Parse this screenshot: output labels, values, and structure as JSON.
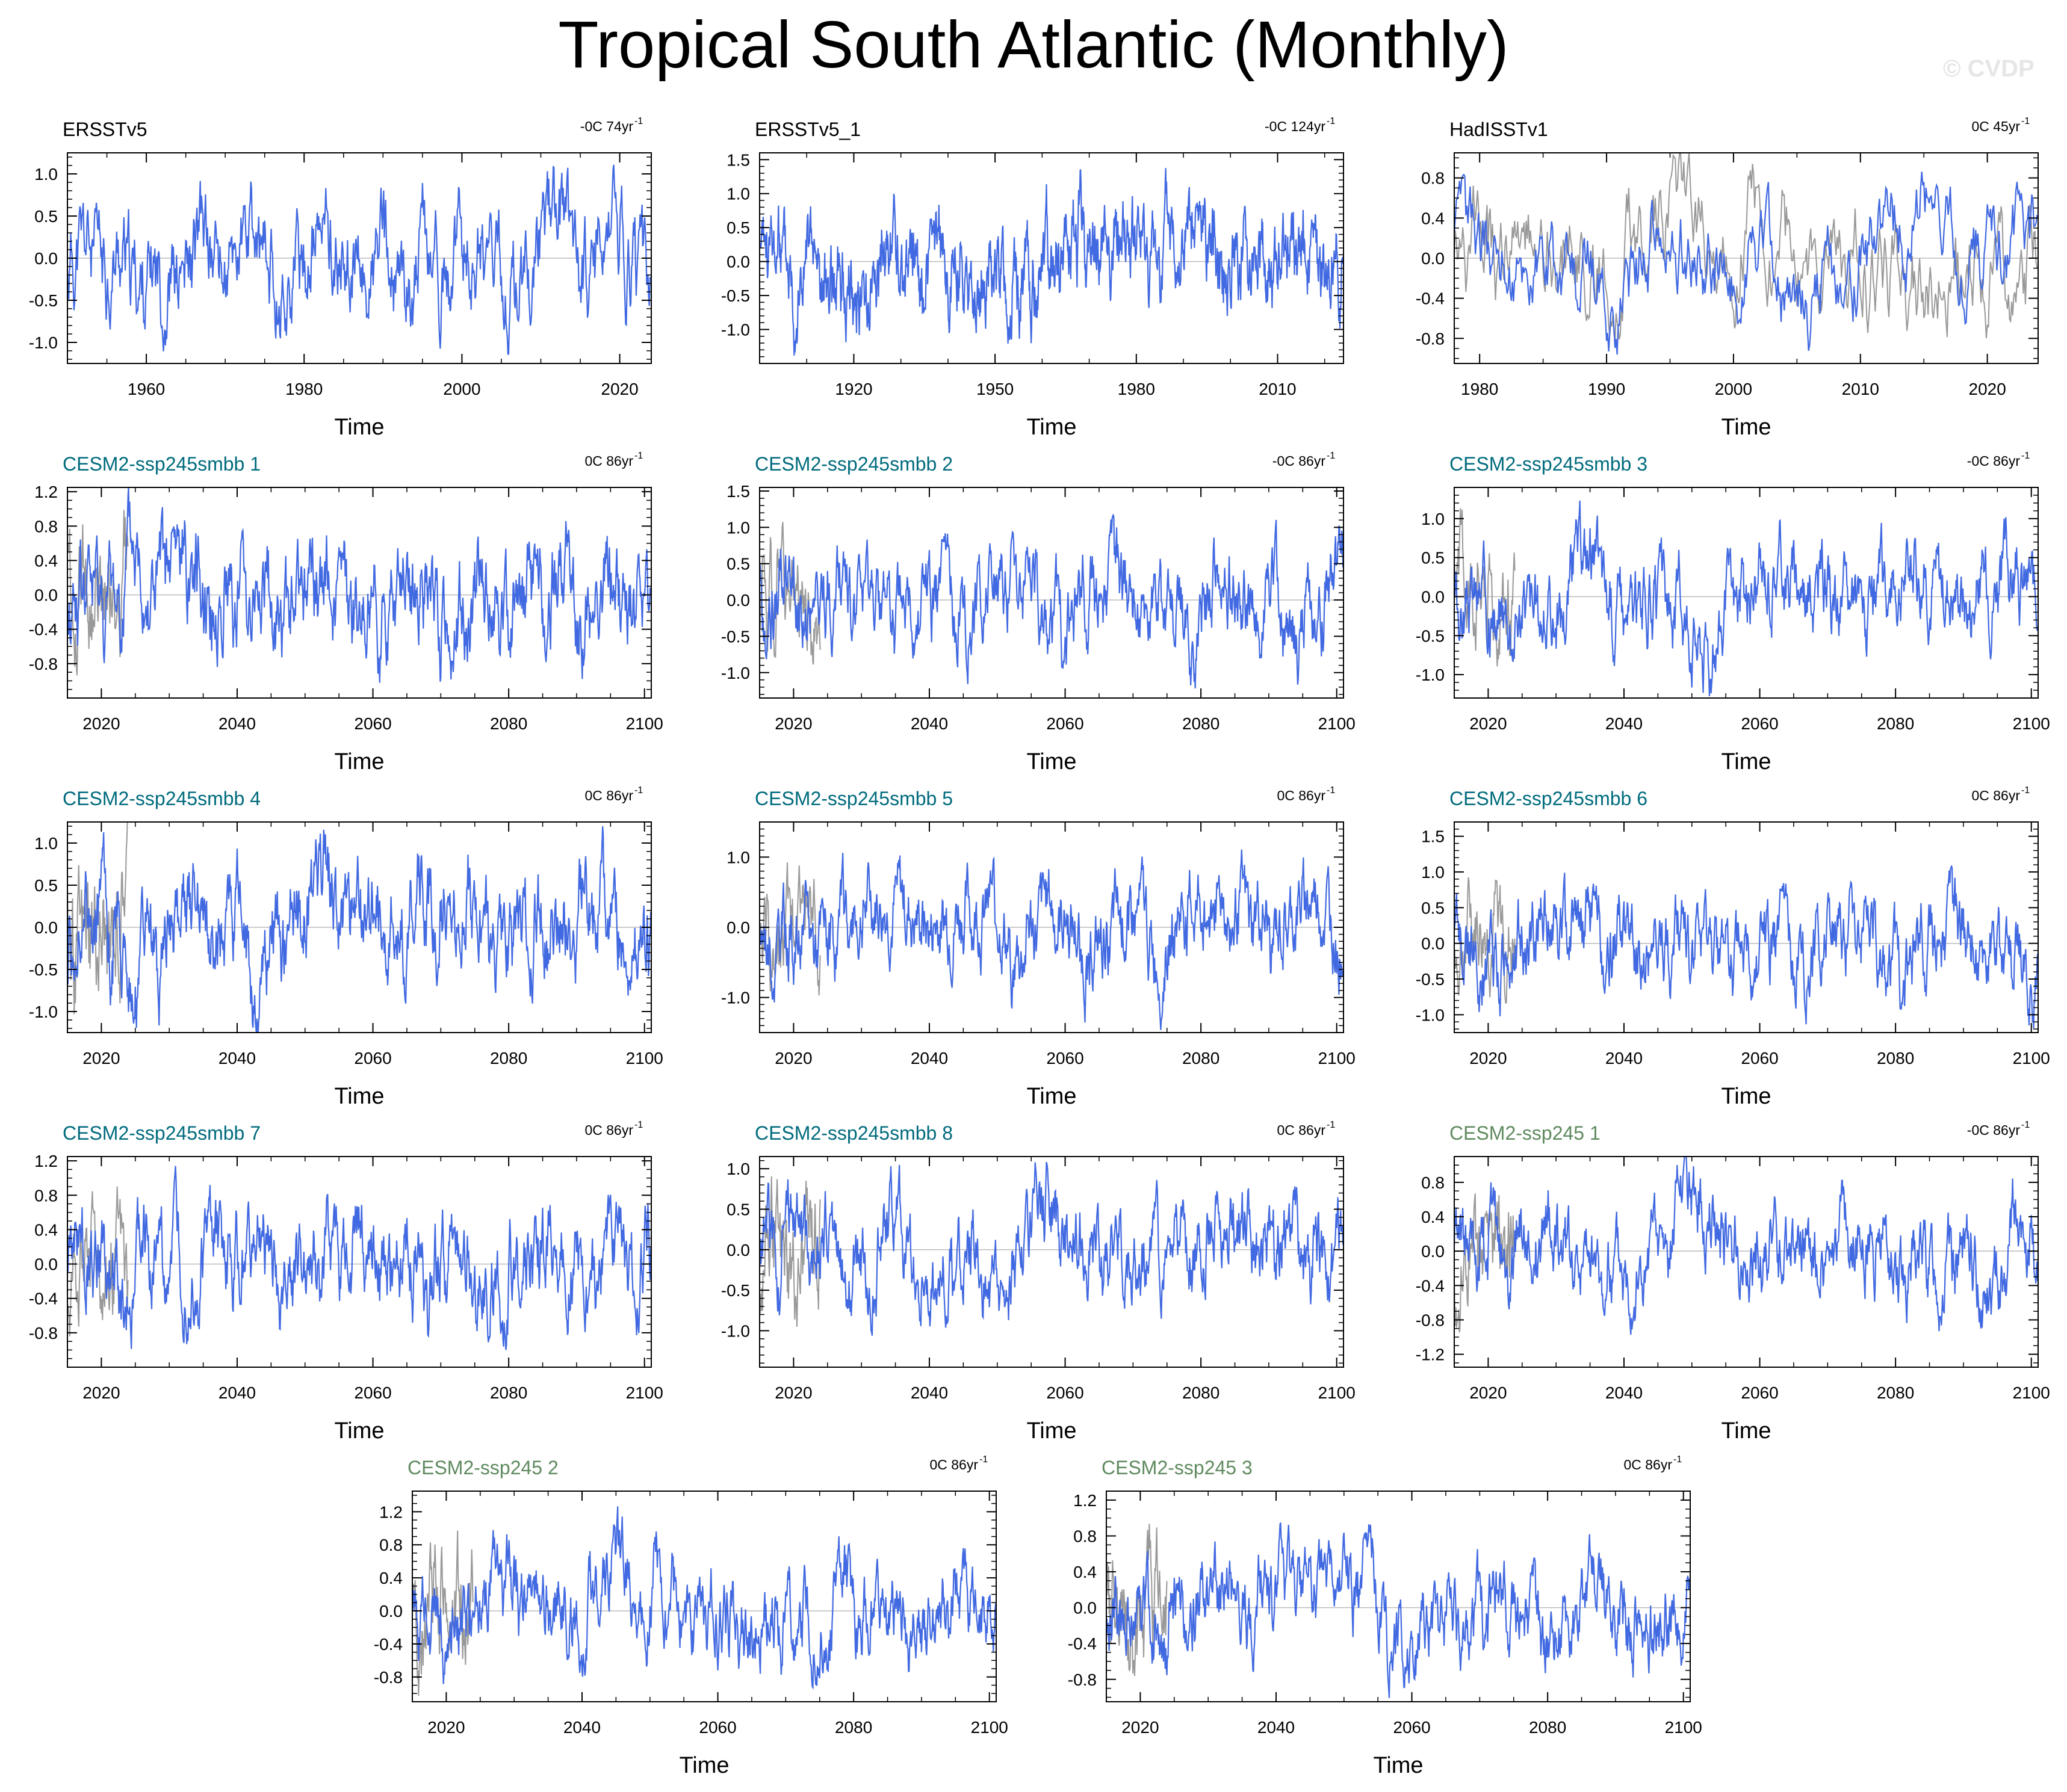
{
  "title": "Tropical South Atlantic (Monthly)",
  "watermark": "© CVDP",
  "colors": {
    "series_line": "#4169e1",
    "reference_line": "#999999",
    "title_obs": "#000000",
    "title_smbb": "#006b7d",
    "title_ssp245": "#5f8a5f",
    "zero_line": "#bbbbbb",
    "frame": "#000000"
  },
  "chart_data": [
    {
      "type": "line",
      "title": "ERSSTv5",
      "title_style": "obs",
      "trend": "-0C 74yr",
      "trend_unit_exp": "-1",
      "xlabel": "Time",
      "xlim": [
        1950,
        2024
      ],
      "ylim": [
        -1.25,
        1.25
      ],
      "xticks": [
        1960,
        1980,
        2000,
        2020
      ],
      "yticks": [
        "1.0",
        "0.5",
        "0.0",
        "-0.5",
        "-1.0"
      ],
      "ytick_values": [
        1.0,
        0.5,
        0.0,
        -0.5,
        -1.0
      ],
      "amplitude": 0.42,
      "ref_end": null,
      "seed": 11
    },
    {
      "type": "line",
      "title": "ERSSTv5_1",
      "title_style": "obs",
      "trend": "-0C 124yr",
      "trend_unit_exp": "-1",
      "xlabel": "Time",
      "xlim": [
        1900,
        2024
      ],
      "ylim": [
        -1.5,
        1.6
      ],
      "xticks": [
        1920,
        1950,
        1980,
        2010
      ],
      "yticks": [
        "1.5",
        "1.0",
        "0.5",
        "0.0",
        "-0.5",
        "-1.0"
      ],
      "ytick_values": [
        1.5,
        1.0,
        0.5,
        0.0,
        -0.5,
        -1.0
      ],
      "amplitude": 0.45,
      "ref_end": null,
      "seed": 23
    },
    {
      "type": "line",
      "title": "HadISSTv1",
      "title_style": "obs",
      "trend": "0C 45yr",
      "trend_unit_exp": "-1",
      "xlabel": "Time",
      "xlim": [
        1978,
        2024
      ],
      "ylim": [
        -1.05,
        1.05
      ],
      "xticks": [
        1980,
        1990,
        2000,
        2010,
        2020
      ],
      "yticks": [
        "0.8",
        "0.4",
        "0.0",
        "-0.4",
        "-0.8"
      ],
      "ytick_values": [
        0.8,
        0.4,
        0.0,
        -0.4,
        -0.8
      ],
      "amplitude": 0.36,
      "ref_end": 2024,
      "seed": 37
    },
    {
      "type": "line",
      "title": "CESM2-ssp245smbb 1",
      "title_style": "smbb",
      "trend": "0C 86yr",
      "trend_unit_exp": "-1",
      "xlabel": "Time",
      "xlim": [
        2015,
        2101
      ],
      "ylim": [
        -1.2,
        1.25
      ],
      "xticks": [
        2020,
        2040,
        2060,
        2080,
        2100
      ],
      "yticks": [
        "1.2",
        "0.8",
        "0.4",
        "0.0",
        "-0.4",
        "-0.8"
      ],
      "ytick_values": [
        1.2,
        0.8,
        0.4,
        0.0,
        -0.4,
        -0.8
      ],
      "amplitude": 0.38,
      "ref_end": 2024,
      "seed": 41
    },
    {
      "type": "line",
      "title": "CESM2-ssp245smbb 2",
      "title_style": "smbb",
      "trend": "-0C 86yr",
      "trend_unit_exp": "-1",
      "xlabel": "Time",
      "xlim": [
        2015,
        2101
      ],
      "ylim": [
        -1.35,
        1.55
      ],
      "xticks": [
        2020,
        2040,
        2060,
        2080,
        2100
      ],
      "yticks": [
        "1.5",
        "1.0",
        "0.5",
        "0.0",
        "-0.5",
        "-1.0"
      ],
      "ytick_values": [
        1.5,
        1.0,
        0.5,
        0.0,
        -0.5,
        -1.0
      ],
      "amplitude": 0.42,
      "ref_end": 2024,
      "seed": 53
    },
    {
      "type": "line",
      "title": "CESM2-ssp245smbb 3",
      "title_style": "smbb",
      "trend": "-0C 86yr",
      "trend_unit_exp": "-1",
      "xlabel": "Time",
      "xlim": [
        2015,
        2101
      ],
      "ylim": [
        -1.3,
        1.4
      ],
      "xticks": [
        2020,
        2040,
        2060,
        2080,
        2100
      ],
      "yticks": [
        "1.0",
        "0.5",
        "0.0",
        "-0.5",
        "-1.0"
      ],
      "ytick_values": [
        1.0,
        0.5,
        0.0,
        -0.5,
        -1.0
      ],
      "amplitude": 0.4,
      "ref_end": 2024,
      "seed": 67
    },
    {
      "type": "line",
      "title": "CESM2-ssp245smbb 4",
      "title_style": "smbb",
      "trend": "0C 86yr",
      "trend_unit_exp": "-1",
      "xlabel": "Time",
      "xlim": [
        2015,
        2101
      ],
      "ylim": [
        -1.25,
        1.25
      ],
      "xticks": [
        2020,
        2040,
        2060,
        2080,
        2100
      ],
      "yticks": [
        "1.0",
        "0.5",
        "0.0",
        "-0.5",
        "-1.0"
      ],
      "ytick_values": [
        1.0,
        0.5,
        0.0,
        -0.5,
        -1.0
      ],
      "amplitude": 0.42,
      "ref_end": 2024,
      "seed": 71
    },
    {
      "type": "line",
      "title": "CESM2-ssp245smbb 5",
      "title_style": "smbb",
      "trend": "0C 86yr",
      "trend_unit_exp": "-1",
      "xlabel": "Time",
      "xlim": [
        2015,
        2101
      ],
      "ylim": [
        -1.5,
        1.5
      ],
      "xticks": [
        2020,
        2040,
        2060,
        2080,
        2100
      ],
      "yticks": [
        "1.0",
        "0.0",
        "-1.0"
      ],
      "ytick_values": [
        1.0,
        0.0,
        -1.0
      ],
      "amplitude": 0.42,
      "ref_end": 2024,
      "seed": 83
    },
    {
      "type": "line",
      "title": "CESM2-ssp245smbb 6",
      "title_style": "smbb",
      "trend": "0C 86yr",
      "trend_unit_exp": "-1",
      "xlabel": "Time",
      "xlim": [
        2015,
        2101
      ],
      "ylim": [
        -1.25,
        1.7
      ],
      "xticks": [
        2020,
        2040,
        2060,
        2080,
        2100
      ],
      "yticks": [
        "1.5",
        "1.0",
        "0.5",
        "0.0",
        "-0.5",
        "-1.0"
      ],
      "ytick_values": [
        1.5,
        1.0,
        0.5,
        0.0,
        -0.5,
        -1.0
      ],
      "amplitude": 0.4,
      "ref_end": 2024,
      "seed": 97
    },
    {
      "type": "line",
      "title": "CESM2-ssp245smbb 7",
      "title_style": "smbb",
      "trend": "0C 86yr",
      "trend_unit_exp": "-1",
      "xlabel": "Time",
      "xlim": [
        2015,
        2101
      ],
      "ylim": [
        -1.2,
        1.25
      ],
      "xticks": [
        2020,
        2040,
        2060,
        2080,
        2100
      ],
      "yticks": [
        "1.2",
        "0.8",
        "0.4",
        "0.0",
        "-0.4",
        "-0.8"
      ],
      "ytick_values": [
        1.2,
        0.8,
        0.4,
        0.0,
        -0.4,
        -0.8
      ],
      "amplitude": 0.38,
      "ref_end": 2024,
      "seed": 103
    },
    {
      "type": "line",
      "title": "CESM2-ssp245smbb 8",
      "title_style": "smbb",
      "trend": "0C 86yr",
      "trend_unit_exp": "-1",
      "xlabel": "Time",
      "xlim": [
        2015,
        2101
      ],
      "ylim": [
        -1.45,
        1.15
      ],
      "xticks": [
        2020,
        2040,
        2060,
        2080,
        2100
      ],
      "yticks": [
        "1.0",
        "0.5",
        "0.0",
        "-0.5",
        "-1.0"
      ],
      "ytick_values": [
        1.0,
        0.5,
        0.0,
        -0.5,
        -1.0
      ],
      "amplitude": 0.4,
      "ref_end": 2024,
      "seed": 109
    },
    {
      "type": "line",
      "title": "CESM2-ssp245 1",
      "title_style": "ssp245",
      "trend": "-0C 86yr",
      "trend_unit_exp": "-1",
      "xlabel": "Time",
      "xlim": [
        2015,
        2101
      ],
      "ylim": [
        -1.35,
        1.1
      ],
      "xticks": [
        2020,
        2040,
        2060,
        2080,
        2100
      ],
      "yticks": [
        "0.8",
        "0.4",
        "0.0",
        "-0.4",
        "-0.8",
        "-1.2"
      ],
      "ytick_values": [
        0.8,
        0.4,
        0.0,
        -0.4,
        -0.8,
        -1.2
      ],
      "amplitude": 0.36,
      "ref_end": 2024,
      "seed": 127
    },
    {
      "type": "line",
      "title": "CESM2-ssp245 2",
      "title_style": "ssp245",
      "trend": "0C 86yr",
      "trend_unit_exp": "-1",
      "xlabel": "Time",
      "xlim": [
        2015,
        2101
      ],
      "ylim": [
        -1.1,
        1.45
      ],
      "xticks": [
        2020,
        2040,
        2060,
        2080,
        2100
      ],
      "yticks": [
        "1.2",
        "0.8",
        "0.4",
        "0.0",
        "-0.4",
        "-0.8"
      ],
      "ytick_values": [
        1.2,
        0.8,
        0.4,
        0.0,
        -0.4,
        -0.8
      ],
      "amplitude": 0.38,
      "ref_end": 2024,
      "seed": 131
    },
    {
      "type": "line",
      "title": "CESM2-ssp245 3",
      "title_style": "ssp245",
      "trend": "0C 86yr",
      "trend_unit_exp": "-1",
      "xlabel": "Time",
      "xlim": [
        2015,
        2101
      ],
      "ylim": [
        -1.05,
        1.3
      ],
      "xticks": [
        2020,
        2040,
        2060,
        2080,
        2100
      ],
      "yticks": [
        "1.2",
        "0.8",
        "0.4",
        "0.0",
        "-0.4",
        "-0.8"
      ],
      "ytick_values": [
        1.2,
        0.8,
        0.4,
        0.0,
        -0.4,
        -0.8
      ],
      "amplitude": 0.36,
      "ref_end": 2024,
      "seed": 149
    }
  ]
}
